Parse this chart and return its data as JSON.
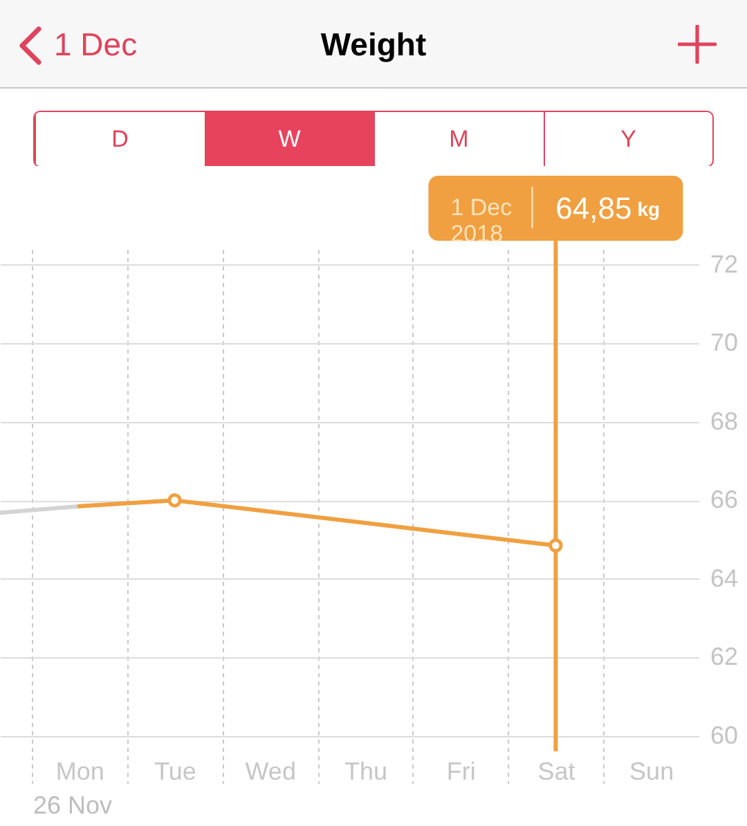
{
  "chart_data": {
    "type": "line",
    "title": "Weight",
    "categories": [
      null,
      "Mon",
      "Tue",
      "Wed",
      "Thu",
      "Fri",
      "Sat",
      "Sun"
    ],
    "series": [
      {
        "color": "#d4d4d4",
        "values": [
          65.65,
          65.85,
          null,
          null,
          null,
          null,
          null,
          null
        ],
        "marker": "none"
      },
      {
        "color": "#f0a040",
        "x": [
          "Mon",
          "Tue"
        ],
        "values": [
          65.85,
          66.0
        ],
        "marker": "none"
      },
      {
        "color": "#f0a040",
        "x": [
          "Tue",
          "Sat"
        ],
        "values": [
          66.0,
          64.85
        ]
      }
    ],
    "marker": "circle",
    "ylim": [
      58.8,
      72.4
    ],
    "yticks": [
      60,
      62,
      64,
      66,
      68,
      70,
      72
    ],
    "grid": true,
    "ref_lines": [
      {
        "axis": "x",
        "value": "Sat",
        "label": "64,85 kg",
        "color": "#f0a040"
      }
    ],
    "annotations": [
      "1 Dec",
      "D",
      "W",
      "M",
      "Y",
      "26 Nov",
      "1 Dec\n2018"
    ]
  }
}
